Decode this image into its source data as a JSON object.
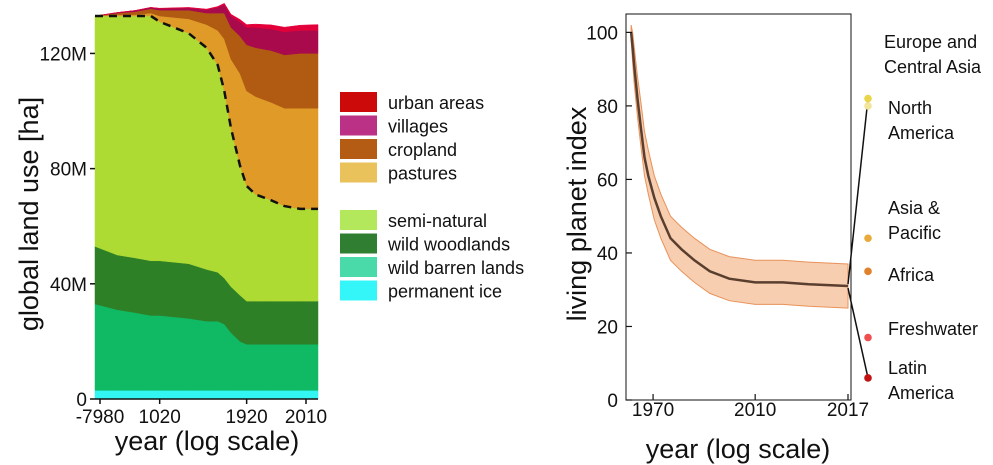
{
  "chart_data": [
    {
      "type": "area",
      "stacked": true,
      "xlabel": "year (log scale)",
      "ylabel": "global land use [ha]",
      "x_scale": "log",
      "x_ticks": [
        "-7980",
        "1020",
        "1920",
        "2010"
      ],
      "y_ticks": [
        "0",
        "40M",
        "80M",
        "120M"
      ],
      "ylim": [
        0,
        133
      ],
      "y_unit": "M ha",
      "grid": false,
      "x": [
        "-7980",
        "-5000",
        "-2000",
        "0",
        "1020",
        "1500",
        "1700",
        "1800",
        "1850",
        "1880",
        "1900",
        "1920",
        "1930",
        "1950",
        "1970",
        "1990",
        "2010"
      ],
      "series": [
        {
          "name": "permanent ice",
          "color": "#33f5f2",
          "values": [
            3,
            3,
            3,
            3,
            3,
            3,
            3,
            3,
            3,
            3,
            3,
            3,
            3,
            3,
            3,
            3,
            3
          ]
        },
        {
          "name": "wild barren lands",
          "color": "#10b964",
          "values": [
            30,
            28,
            27,
            26,
            26,
            25,
            24,
            24,
            23,
            20,
            17,
            16,
            16,
            16,
            16,
            16,
            16
          ]
        },
        {
          "name": "wild woodlands",
          "color": "#2e8027",
          "values": [
            20,
            19,
            19,
            19,
            19,
            19,
            18,
            17,
            16,
            16,
            16,
            15,
            15,
            15,
            15,
            15,
            15
          ]
        },
        {
          "name": "semi-natural",
          "color": "#addb33",
          "values": [
            80,
            83,
            84,
            85,
            83,
            80,
            77,
            72,
            65,
            55,
            45,
            40,
            37,
            35,
            33,
            32,
            32
          ]
        },
        {
          "name": "pastures",
          "color": "#df9a27",
          "values": [
            0,
            0.5,
            0.5,
            1,
            2,
            5,
            8,
            12,
            18,
            24,
            32,
            33,
            34,
            34,
            34,
            35,
            35
          ]
        },
        {
          "name": "cropland",
          "color": "#b15b12",
          "values": [
            0,
            0.5,
            1,
            1.5,
            2,
            3,
            4,
            6,
            9,
            11,
            13,
            16,
            17,
            18,
            18.5,
            19,
            19
          ]
        },
        {
          "name": "villages",
          "color": "#a80a4c",
          "values": [
            0,
            0.2,
            0.4,
            0.5,
            0.6,
            0.8,
            1.2,
            2,
            3,
            4,
            5,
            6,
            7,
            7.5,
            8,
            8,
            8
          ]
        },
        {
          "name": "urban areas",
          "color": "#e3003a",
          "values": [
            0,
            0,
            0,
            0,
            0.1,
            0.2,
            0.2,
            0.3,
            0.4,
            0.6,
            0.8,
            1,
            1.2,
            1.4,
            1.6,
            1.8,
            2
          ]
        }
      ],
      "dashed_boundary": "top of semi-natural (start of pastures)",
      "legend": {
        "placement": "right",
        "groups": [
          [
            {
              "label": "urban areas",
              "color": "#cc0a0a"
            },
            {
              "label": "villages",
              "color": "#bb3185"
            },
            {
              "label": "cropland",
              "color": "#b45b14"
            },
            {
              "label": "pastures",
              "color": "#e9c25c"
            }
          ],
          [
            {
              "label": "semi-natural",
              "color": "#b4e85c"
            },
            {
              "label": "wild woodlands",
              "color": "#2f7e31"
            },
            {
              "label": "wild barren lands",
              "color": "#4ad9a9"
            },
            {
              "label": "permanent ice",
              "color": "#34f5f8"
            }
          ]
        ]
      }
    },
    {
      "type": "line",
      "xlabel": "year (log scale)",
      "ylabel": "living planet index",
      "x_scale": "log",
      "x_ticks": [
        "1970",
        "2010",
        "2017"
      ],
      "y_ticks": [
        "0",
        "20",
        "40",
        "60",
        "80",
        "100"
      ],
      "ylim": [
        0,
        105
      ],
      "grid": false,
      "line_color": "#5a3e2e",
      "band_color": "#f2b486",
      "series": [
        {
          "x": [
            1970,
            1971,
            1972,
            1974,
            1976,
            1978,
            1980,
            1983,
            1986,
            1990,
            1994,
            1998,
            2002,
            2006,
            2010,
            2013,
            2015,
            2017
          ],
          "values": [
            100,
            96,
            91,
            82,
            74,
            66,
            61,
            55,
            50,
            44,
            41,
            38,
            35,
            33,
            32,
            32,
            31.5,
            31
          ],
          "lower": [
            98,
            92,
            86,
            77,
            69,
            61,
            56,
            49,
            44,
            38,
            35,
            32,
            29,
            27,
            26,
            26,
            25.5,
            25
          ],
          "upper": [
            102,
            100,
            96,
            88,
            81,
            73,
            68,
            61,
            56,
            50,
            47,
            44,
            41,
            39,
            38,
            38,
            37.5,
            37
          ]
        }
      ],
      "regions": [
        {
          "label": "Europe and Central Asia",
          "value": 82,
          "color": "#e9d54a"
        },
        {
          "label": "North America",
          "value": 80,
          "color": "#f2e49a"
        },
        {
          "label": "Asia & Pacific",
          "value": 44,
          "color": "#e8aa3a"
        },
        {
          "label": "Africa",
          "value": 35,
          "color": "#e0822c"
        },
        {
          "label": "Freshwater",
          "value": 17,
          "color": "#f04f4f"
        },
        {
          "label": "Latin America",
          "value": 6,
          "color": "#c31212"
        }
      ]
    }
  ]
}
